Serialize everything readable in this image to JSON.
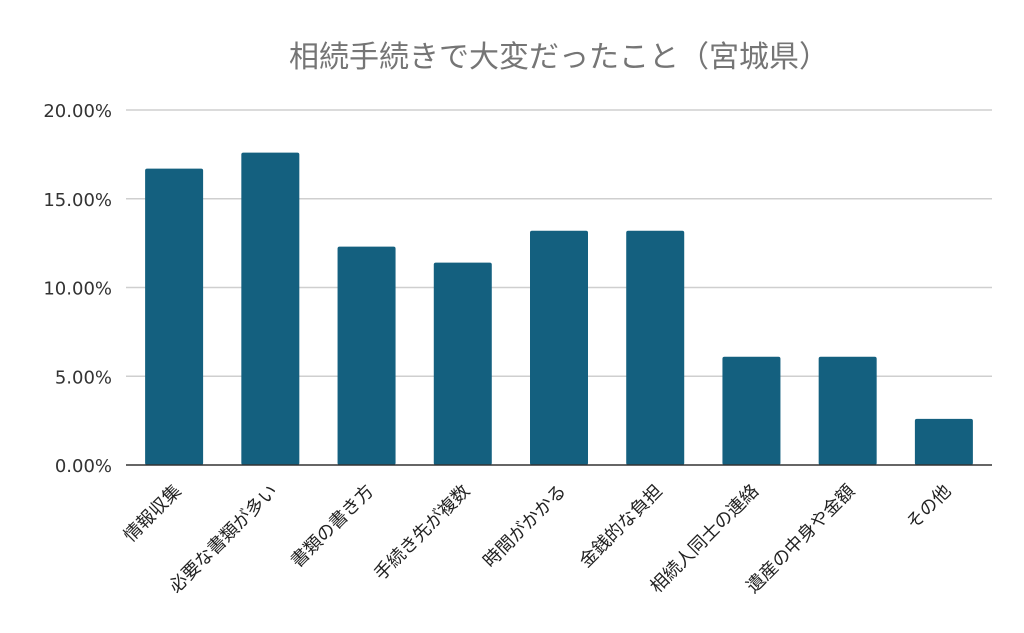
{
  "chart_data": {
    "type": "bar",
    "title": "相続手続きで大変だったこと（宮城県）",
    "xlabel": "",
    "ylabel": "",
    "ylim": [
      0,
      20
    ],
    "yticks": [
      "0.00%",
      "5.00%",
      "10.00%",
      "15.00%",
      "20.00%"
    ],
    "grid": true,
    "legend": "none",
    "categories": [
      "情報収集",
      "必要な書類が多い",
      "書類の書き方",
      "手続き先が複数",
      "時間がかかる",
      "金銭的な負担",
      "相続人同士の連絡",
      "遺産の中身や金額",
      "その他"
    ],
    "values": [
      16.7,
      17.6,
      12.3,
      11.4,
      13.2,
      13.2,
      6.1,
      6.1,
      2.6
    ],
    "bar_color": "#14607f"
  }
}
